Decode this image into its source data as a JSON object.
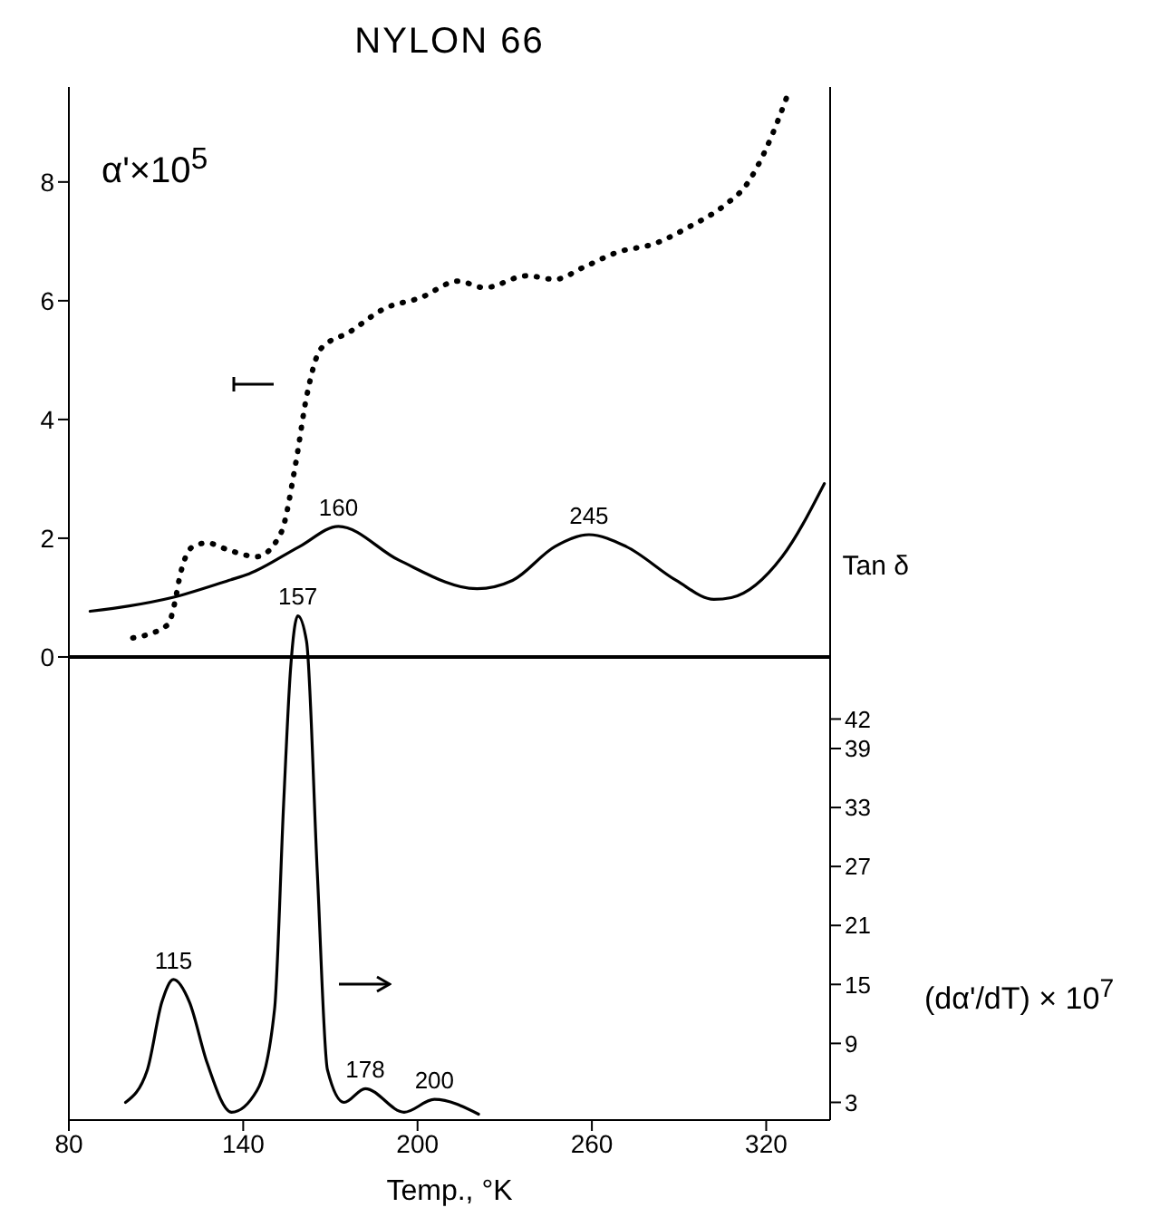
{
  "chart_data": {
    "type": "line",
    "title": "NYLON 66",
    "xlabel": "Temp.,   °K",
    "ylabel": "α'×10$^{5}$",
    "y2label": "(dα'/dT) × 10$^{7}$",
    "xlim": [
      80,
      342
    ],
    "xticks": [
      80,
      140,
      200,
      260,
      320
    ],
    "ylim": [
      -7.8,
      9.6
    ],
    "yticks": [
      0,
      2,
      4,
      6,
      8
    ],
    "y2lim": [
      1.2,
      106.3
    ],
    "y2ticks": [
      3,
      9,
      15,
      21,
      27,
      33,
      39,
      42
    ],
    "grid": false,
    "legend": false,
    "ref_lines": [
      {
        "axis": "y",
        "value": 0,
        "color": "#000000"
      }
    ],
    "series": [
      {
        "color": "#000000",
        "line_style": "dotted",
        "x": [
          102,
          114,
          116.6,
          117.9,
          122.7,
          127.6,
          135,
          144.7,
          153,
          158,
          161.8,
          166.7,
          176.5,
          188.7,
          201,
          214,
          223,
          237.6,
          247.3,
          257,
          269,
          281.5,
          293.7,
          306,
          313,
          319.4,
          324,
          327.3
        ],
        "values": [
          0.32,
          0.54,
          0.95,
          1.29,
          1.86,
          1.92,
          1.8,
          1.69,
          2.09,
          3.24,
          4.38,
          5.19,
          5.47,
          5.87,
          6.05,
          6.33,
          6.22,
          6.42,
          6.36,
          6.56,
          6.82,
          6.96,
          7.25,
          7.62,
          7.94,
          8.5,
          9.03,
          9.46
        ]
      },
      {
        "name": "Tan δ",
        "color": "#000000",
        "line_style": "solid",
        "x": [
          87.3,
          100.8,
          115.4,
          135,
          142,
          159.4,
          172.8,
          193.6,
          220.5,
          232.7,
          247.3,
          259,
          271.8,
          289,
          302,
          308,
          325.5,
          340
        ],
        "values": [
          0.77,
          0.86,
          1.0,
          1.29,
          1.4,
          1.86,
          2.2,
          1.63,
          1.15,
          1.29,
          1.86,
          2.06,
          1.86,
          1.29,
          0.97,
          1.0,
          1.69,
          2.92
        ]
      },
      {
        "axis": "y2",
        "color": "#000000",
        "line_style": "solid",
        "x": [
          99.5,
          107,
          112,
          116,
          121.5,
          127.6,
          136,
          144.7,
          150.8,
          153.9,
          156.3,
          158.8,
          161.8,
          165.5,
          169,
          174.7,
          182,
          195.4,
          205.8,
          221
        ],
        "values": [
          3.0,
          6.3,
          13.2,
          15.5,
          13.2,
          7,
          2.0,
          4.2,
          12.5,
          33.3,
          47.1,
          52.5,
          49.9,
          26.4,
          6.3,
          3.0,
          4.4,
          2.0,
          3.3,
          1.8
        ]
      }
    ],
    "annotations": [
      {
        "text": "160",
        "x": 172.8,
        "y": 2.2
      },
      {
        "text": "245",
        "x": 259,
        "y": 2.06
      },
      {
        "text": "157",
        "x": 158.8,
        "y": 0.7
      },
      {
        "text": "115",
        "x": 116,
        "y": -5.43
      },
      {
        "text": "178",
        "x": 182,
        "y": -7.27
      },
      {
        "text": "200",
        "x": 205.8,
        "y": -7.45
      }
    ]
  }
}
